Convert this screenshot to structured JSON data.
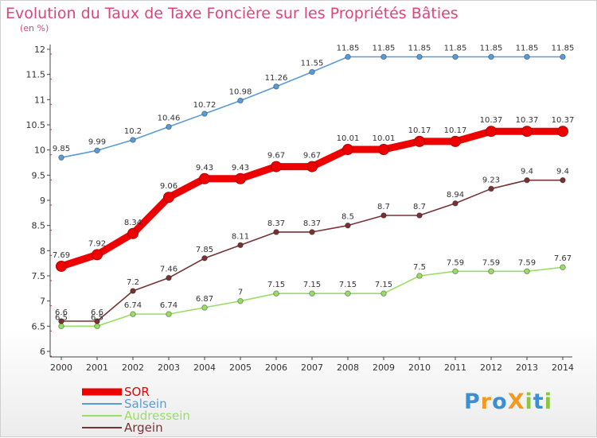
{
  "title": "Evolution du Taux de Taxe Foncière sur les Propriétés Bâties",
  "subtitle": "(en %)",
  "logo": {
    "text": "ProXiti",
    "letters": [
      {
        "ch": "P",
        "color": "#3d8fd1"
      },
      {
        "ch": "r",
        "color": "#f39a1e"
      },
      {
        "ch": "o",
        "color": "#3d8fd1"
      },
      {
        "ch": "X",
        "color": "#f39a1e"
      },
      {
        "ch": "i",
        "color": "#8cc63f"
      },
      {
        "ch": "t",
        "color": "#3d8fd1"
      },
      {
        "ch": "i",
        "color": "#8cc63f"
      }
    ]
  },
  "chart_data": {
    "type": "line",
    "x": [
      "2000",
      "2001",
      "2002",
      "2003",
      "2004",
      "2005",
      "2006",
      "2007",
      "2008",
      "2009",
      "2010",
      "2011",
      "2012",
      "2013",
      "2014"
    ],
    "ylim": [
      6,
      12
    ],
    "yticks": [
      "6",
      "6.5",
      "7",
      "7.5",
      "8",
      "8.5",
      "9",
      "9.5",
      "10",
      "10.5",
      "11",
      "11.5",
      "12"
    ],
    "grid": false,
    "legend_position": "bottom-left",
    "series": [
      {
        "name": "SOR",
        "color": "#ee0000",
        "values": [
          7.69,
          7.92,
          8.34,
          9.06,
          9.43,
          9.43,
          9.67,
          9.67,
          10.01,
          10.01,
          10.17,
          10.17,
          10.37,
          10.37,
          10.37
        ],
        "labels": [
          "7.69",
          "7.92",
          "8.34",
          "9.06",
          "9.43",
          "9.43",
          "9.67",
          "9.67",
          "10.01",
          "10.01",
          "10.17",
          "10.17",
          "10.37",
          "10.37",
          "10.37"
        ]
      },
      {
        "name": "Salsein",
        "color": "#5b9bd5",
        "values": [
          9.85,
          9.99,
          10.2,
          10.46,
          10.72,
          10.98,
          11.26,
          11.55,
          11.85,
          11.85,
          11.85,
          11.85,
          11.85,
          11.85,
          11.85
        ],
        "labels": [
          "9.85",
          "9.99",
          "10.2",
          "10.46",
          "10.72",
          "10.98",
          "11.26",
          "11.55",
          "11.85",
          "11.85",
          "11.85",
          "11.85",
          "11.85",
          "11.85",
          "11.85"
        ]
      },
      {
        "name": "Audressein",
        "color": "#99dd66",
        "values": [
          6.5,
          6.5,
          6.74,
          6.74,
          6.87,
          7,
          7.15,
          7.15,
          7.15,
          7.15,
          7.5,
          7.59,
          7.59,
          7.59,
          7.67
        ],
        "labels": [
          "6.5",
          "6.5",
          "6.74",
          "6.74",
          "6.87",
          "7",
          "7.15",
          "7.15",
          "7.15",
          "7.15",
          "7.5",
          "7.59",
          "7.59",
          "7.59",
          "7.67"
        ]
      },
      {
        "name": "Argein",
        "color": "#773333",
        "values": [
          6.6,
          6.6,
          7.2,
          7.46,
          7.85,
          8.11,
          8.37,
          8.37,
          8.5,
          8.7,
          8.7,
          8.94,
          9.23,
          9.4,
          9.4
        ],
        "labels": [
          "6.6",
          "6.6",
          "7.2",
          "7.46",
          "7.85",
          "8.11",
          "8.37",
          "8.37",
          "8.5",
          "8.7",
          "8.7",
          "8.94",
          "9.23",
          "9.4",
          "9.4"
        ]
      }
    ]
  }
}
